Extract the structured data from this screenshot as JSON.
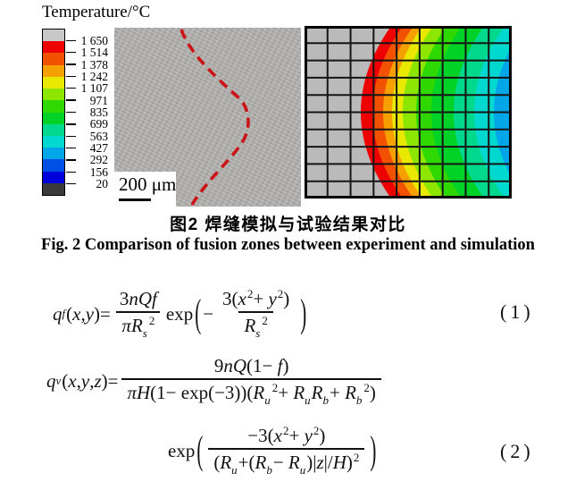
{
  "legend": {
    "title": "Temperature/°C",
    "tick_labels": [
      "1 650",
      "1 514",
      "1 378",
      "1 242",
      "1 107",
      "971",
      "835",
      "699",
      "563",
      "427",
      "292",
      "156",
      "20"
    ],
    "band_colors": [
      "#c8c8c8",
      "#ee0000",
      "#f25200",
      "#f6a000",
      "#e8e800",
      "#8ce600",
      "#2ed800",
      "#00d228",
      "#00d88e",
      "#00d8d0",
      "#00a6e8",
      "#0050e8",
      "#0000dc",
      "#3a3a3a"
    ]
  },
  "experiment": {
    "scale_label": "200 μm",
    "fusion_line_color": "#cc1418"
  },
  "simulation": {
    "base_color": "#bababa",
    "grid_color": "#151515",
    "band_colors": [
      "#ee0000",
      "#f25200",
      "#f6a000",
      "#e8e800",
      "#8ce600",
      "#2ed800",
      "#00d228",
      "#00d88e",
      "#00d8d0",
      "#00a6e8",
      "#0050e8"
    ],
    "boundaries_top_x": [
      97,
      110,
      122,
      132,
      144,
      159,
      176,
      201,
      224,
      246,
      264
    ],
    "bulge": 34,
    "grid": {
      "cols": 9,
      "rows": 10
    }
  },
  "captions": {
    "zh": "图2  焊缝模拟与试验结果对比",
    "en": "Fig. 2  Comparison of fusion zones between experiment and simulation"
  },
  "equations": {
    "eq1": {
      "number": "(1)",
      "tokens": [
        {
          "v": "q"
        },
        {
          "sub": "f"
        },
        {
          "t": "("
        },
        {
          "v": "x"
        },
        {
          "t": ", "
        },
        {
          "v": "y"
        },
        {
          "t": ")= "
        },
        {
          "frac": {
            "n": [
              {
                "t": "3"
              },
              {
                "v": "nQf"
              }
            ],
            "d": [
              {
                "v": "π"
              },
              {
                "v": "R"
              },
              {
                "sub": "s"
              },
              {
                "sup": "2"
              }
            ]
          }
        },
        {
          "t": " exp"
        },
        {
          "p": "("
        },
        {
          "t": "− "
        },
        {
          "frac": {
            "n": [
              {
                "t": "3("
              },
              {
                "v": "x"
              },
              {
                "sup": "2"
              },
              {
                "t": "+ "
              },
              {
                "v": "y"
              },
              {
                "sup": "2"
              },
              {
                "t": ")"
              }
            ],
            "d": [
              {
                "v": "R"
              },
              {
                "sub": "s"
              },
              {
                "sup": "2"
              }
            ]
          }
        },
        {
          "p": ")"
        }
      ]
    },
    "eq2_line1": {
      "tokens": [
        {
          "v": "q"
        },
        {
          "sub": "v"
        },
        {
          "t": "("
        },
        {
          "v": "x"
        },
        {
          "t": ", "
        },
        {
          "v": "y"
        },
        {
          "t": ", "
        },
        {
          "v": "z"
        },
        {
          "t": ")= "
        },
        {
          "frac": {
            "n": [
              {
                "t": "9"
              },
              {
                "v": "nQ"
              },
              {
                "t": "(1− "
              },
              {
                "v": "f"
              },
              {
                "t": ")"
              }
            ],
            "d": [
              {
                "v": "π"
              },
              {
                "v": "H"
              },
              {
                "t": "(1− exp(−3))("
              },
              {
                "v": "R"
              },
              {
                "sub": "u"
              },
              {
                "sup": "2"
              },
              {
                "t": "+ "
              },
              {
                "v": "R"
              },
              {
                "sub": "u"
              },
              {
                "v": "R"
              },
              {
                "sub": "b"
              },
              {
                "t": "+ "
              },
              {
                "v": "R"
              },
              {
                "sub": "b"
              },
              {
                "sup": "2"
              },
              {
                "t": ")"
              }
            ]
          }
        }
      ]
    },
    "eq2_line2": {
      "number": "(2)",
      "tokens": [
        {
          "t": "exp"
        },
        {
          "p": "("
        },
        {
          "frac": {
            "n": [
              {
                "t": "−3("
              },
              {
                "v": "x"
              },
              {
                "sup": "2"
              },
              {
                "t": "+ "
              },
              {
                "v": "y"
              },
              {
                "sup": "2"
              },
              {
                "t": ")"
              }
            ],
            "d": [
              {
                "t": "("
              },
              {
                "v": "R"
              },
              {
                "sub": "u"
              },
              {
                "t": "+("
              },
              {
                "v": "R"
              },
              {
                "sub": "b"
              },
              {
                "t": "− "
              },
              {
                "v": "R"
              },
              {
                "sub": "u"
              },
              {
                "t": ")|"
              },
              {
                "v": "z"
              },
              {
                "t": "|/"
              },
              {
                "v": "H"
              },
              {
                "t": ")"
              },
              {
                "sup": "2"
              }
            ]
          }
        },
        {
          "p": ")"
        }
      ]
    }
  }
}
